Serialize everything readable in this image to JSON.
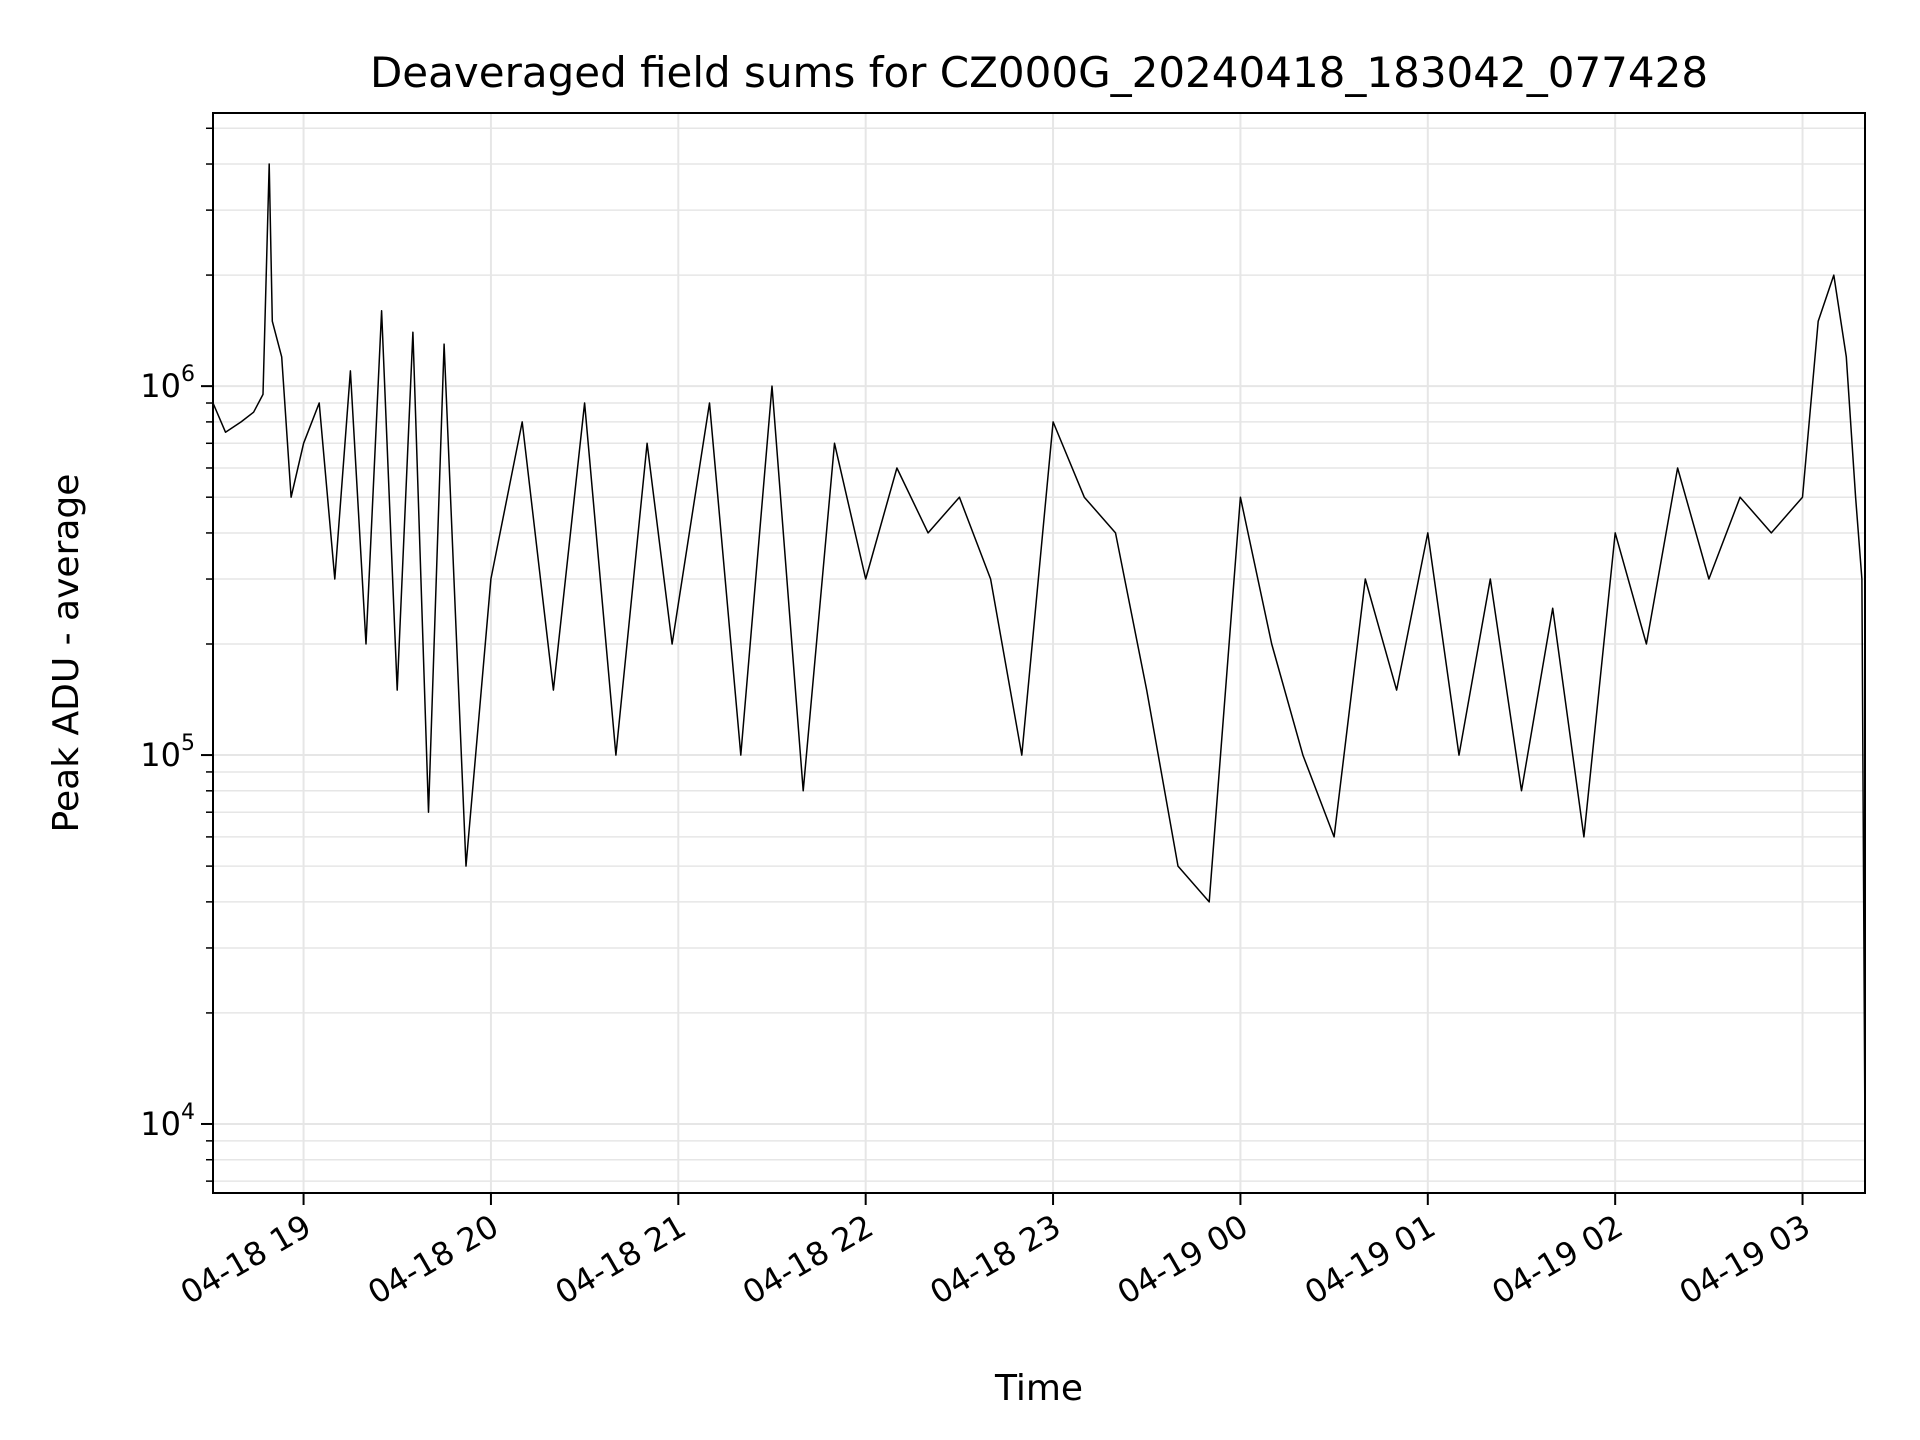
{
  "chart_data": {
    "type": "line",
    "title": "Deaveraged field sums for CZ000G_20240418_183042_077428",
    "xlabel": "Time",
    "ylabel": "Peak ADU - average",
    "x_tick_labels": [
      "04-18 19",
      "04-18 20",
      "04-18 21",
      "04-18 22",
      "04-18 23",
      "04-19 00",
      "04-19 01",
      "04-19 02",
      "04-19 03"
    ],
    "y_tick_labels": [
      {
        "base": "10",
        "exp": "4",
        "value": 10000
      },
      {
        "base": "10",
        "exp": "5",
        "value": 100000
      },
      {
        "base": "10",
        "exp": "6",
        "value": 1000000
      }
    ],
    "xlim": [
      "2024-04-18 18:31",
      "2024-04-19 03:20"
    ],
    "ylim": [
      6500,
      5500000
    ],
    "y_scale": "log",
    "grid": true,
    "line_color": "#000000",
    "grid_color": "#e6e6e6",
    "series": [
      {
        "x": [
          "2024-04-18 18:31",
          "2024-04-18 18:35",
          "2024-04-18 18:40",
          "2024-04-18 18:44",
          "2024-04-18 18:47",
          "2024-04-18 18:49",
          "2024-04-18 18:50",
          "2024-04-18 18:53",
          "2024-04-18 18:56",
          "2024-04-18 19:00",
          "2024-04-18 19:05",
          "2024-04-18 19:10",
          "2024-04-18 19:15",
          "2024-04-18 19:20",
          "2024-04-18 19:25",
          "2024-04-18 19:30",
          "2024-04-18 19:35",
          "2024-04-18 19:40",
          "2024-04-18 19:45",
          "2024-04-18 19:52",
          "2024-04-18 20:00",
          "2024-04-18 20:10",
          "2024-04-18 20:20",
          "2024-04-18 20:30",
          "2024-04-18 20:40",
          "2024-04-18 20:50",
          "2024-04-18 20:58",
          "2024-04-18 21:10",
          "2024-04-18 21:20",
          "2024-04-18 21:30",
          "2024-04-18 21:40",
          "2024-04-18 21:50",
          "2024-04-18 22:00",
          "2024-04-18 22:10",
          "2024-04-18 22:20",
          "2024-04-18 22:30",
          "2024-04-18 22:40",
          "2024-04-18 22:50",
          "2024-04-18 23:00",
          "2024-04-18 23:10",
          "2024-04-18 23:20",
          "2024-04-18 23:30",
          "2024-04-18 23:40",
          "2024-04-18 23:50",
          "2024-04-19 00:00",
          "2024-04-19 00:10",
          "2024-04-19 00:20",
          "2024-04-19 00:30",
          "2024-04-19 00:40",
          "2024-04-19 00:50",
          "2024-04-19 01:00",
          "2024-04-19 01:10",
          "2024-04-19 01:20",
          "2024-04-19 01:30",
          "2024-04-19 01:40",
          "2024-04-19 01:50",
          "2024-04-19 02:00",
          "2024-04-19 02:10",
          "2024-04-19 02:20",
          "2024-04-19 02:30",
          "2024-04-19 02:40",
          "2024-04-19 02:50",
          "2024-04-19 03:00",
          "2024-04-19 03:05",
          "2024-04-19 03:10",
          "2024-04-19 03:14",
          "2024-04-19 03:17",
          "2024-04-19 03:19",
          "2024-04-19 03:20"
        ],
        "y": [
          900000,
          750000,
          800000,
          850000,
          950000,
          4000000,
          1500000,
          1200000,
          500000,
          700000,
          900000,
          300000,
          1100000,
          200000,
          1600000,
          150000,
          1400000,
          70000,
          1300000,
          50000,
          300000,
          800000,
          150000,
          900000,
          100000,
          700000,
          200000,
          900000,
          100000,
          1000000,
          80000,
          700000,
          300000,
          600000,
          400000,
          500000,
          300000,
          100000,
          800000,
          500000,
          400000,
          150000,
          50000,
          40000,
          500000,
          200000,
          100000,
          60000,
          300000,
          150000,
          400000,
          100000,
          300000,
          80000,
          250000,
          60000,
          400000,
          200000,
          600000,
          300000,
          500000,
          400000,
          500000,
          1500000,
          2000000,
          1200000,
          500000,
          300000,
          9000
        ]
      }
    ]
  }
}
